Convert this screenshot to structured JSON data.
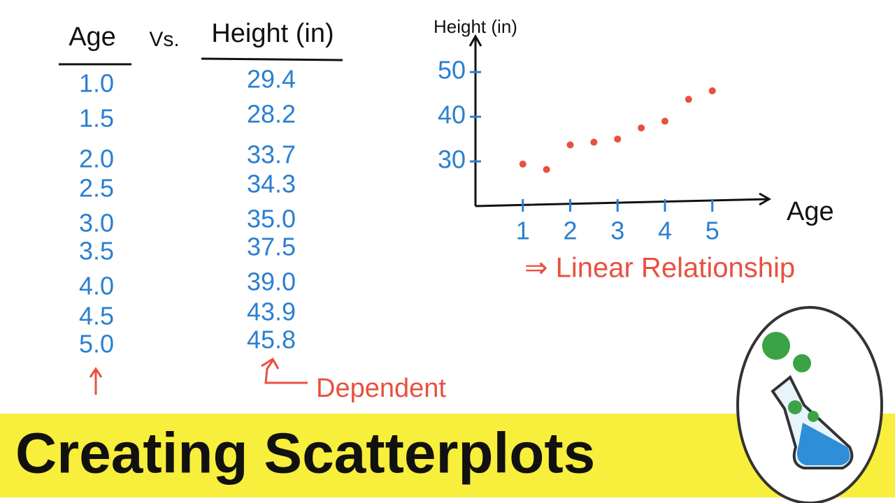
{
  "table": {
    "headers": [
      "Age",
      "Vs.",
      "Height (in)"
    ],
    "rows": [
      [
        "1.0",
        "29.4"
      ],
      [
        "1.5",
        "28.2"
      ],
      [
        "2.0",
        "33.7"
      ],
      [
        "2.5",
        "34.3"
      ],
      [
        "3.0",
        "35.0"
      ],
      [
        "3.5",
        "37.5"
      ],
      [
        "4.0",
        "39.0"
      ],
      [
        "4.5",
        "43.9"
      ],
      [
        "5.0",
        "45.8"
      ]
    ]
  },
  "chart_data": {
    "type": "scatter",
    "x_label": "Age",
    "y_label": "Height (in)",
    "x": [
      1,
      1.5,
      2,
      2.5,
      3,
      3.5,
      4,
      4.5,
      5
    ],
    "values": [
      29.4,
      28.2,
      33.7,
      34.3,
      35.0,
      37.5,
      39.0,
      43.9,
      45.8
    ],
    "color": "#e8503f",
    "xlim": [
      0,
      6.2
    ],
    "ylim": [
      20,
      58
    ],
    "xticks": [
      1,
      2,
      3,
      4,
      5
    ],
    "yticks": [
      30,
      40,
      50
    ]
  },
  "annotations": {
    "relationship": "⇒ Linear Relationship",
    "dependent": "Dependent"
  },
  "banner": {
    "title": "Creating Scatterplots"
  }
}
